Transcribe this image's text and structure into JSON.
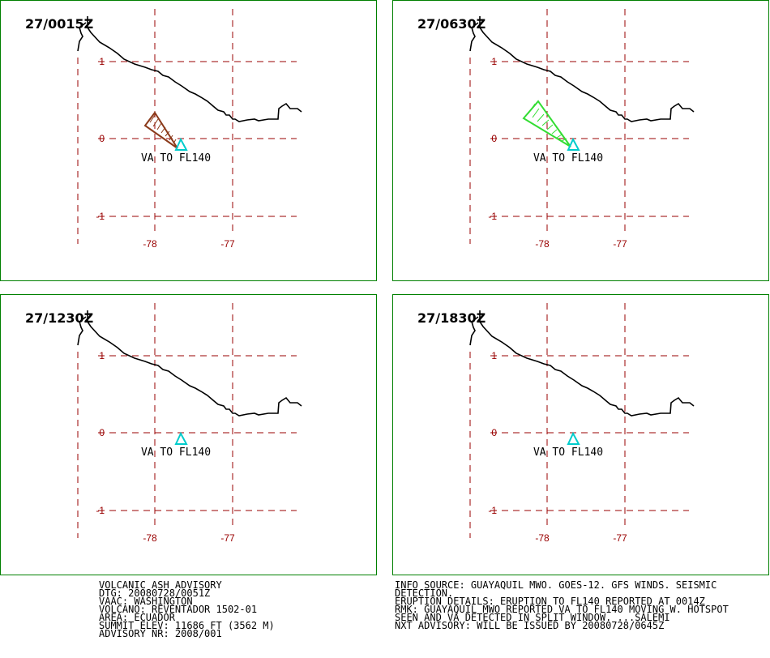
{
  "panels": [
    {
      "time": "27/0015Z",
      "ash_color": "#8B3A1A",
      "has_ash": true
    },
    {
      "time": "27/0630Z",
      "ash_color": "#33DD33",
      "has_ash": true
    },
    {
      "time": "27/1230Z",
      "ash_color": "",
      "has_ash": false
    },
    {
      "time": "27/1830Z",
      "ash_color": "",
      "has_ash": false
    }
  ],
  "map": {
    "lat_labels": [
      "1",
      "0",
      "-1"
    ],
    "lon_labels": [
      "-78",
      "-77"
    ],
    "va_label": "VA TO FL140",
    "grid_color": "#990000",
    "coast_color": "#000000",
    "volcano_color": "#00CCCC",
    "volcano_icon": "triangle-volcano-icon"
  },
  "advisory_left": [
    "VOLCANIC ASH ADVISORY",
    "DTG: 20080728/0051Z",
    "VAAC: WASHINGTON",
    "VOLCANO: REVENTADOR 1502-01",
    "AREA: ECUADOR",
    "SUMMIT ELEV: 11686 FT (3562 M)",
    "ADVISORY NR: 2008/001"
  ],
  "advisory_right": [
    "INFO SOURCE: GUAYAQUIL MWO. GOES-12. GFS WINDS. SEISMIC",
    "DETECTION.",
    "ERUPTION DETAILS: ERUPTION TO FL140 REPORTED AT 0014Z",
    "RMK: GUAYAQUIL MWO REPORTED VA TO FL140 MOVING W. HOTSPOT",
    "SEEN AND VA DETECTED IN SPLIT WINDOW. ...SALEMI",
    "NXT ADVISORY: WILL BE ISSUED BY 20080728/0645Z"
  ]
}
